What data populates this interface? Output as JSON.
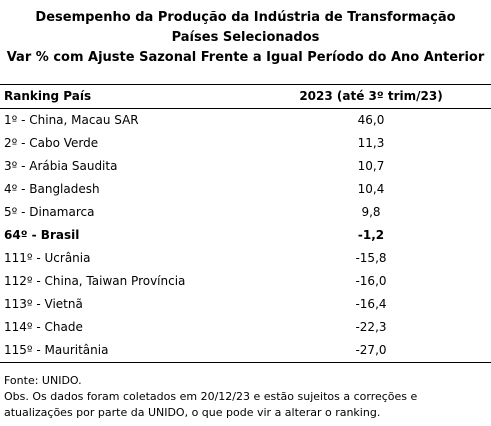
{
  "title": {
    "line1": "Desempenho da Produção da Indústria de Transformação",
    "line2": "Países Selecionados",
    "line3": "Var % com Ajuste Sazonal Frente a Igual Período do Ano Anterior"
  },
  "table": {
    "headers": {
      "country": "Ranking País",
      "value": "2023 (até 3º trim/23)"
    },
    "rows": [
      {
        "country": "1º - China, Macau SAR",
        "value": "46,0",
        "bold": false
      },
      {
        "country": "2º - Cabo Verde",
        "value": "11,3",
        "bold": false
      },
      {
        "country": "3º - Arábia Saudita",
        "value": "10,7",
        "bold": false
      },
      {
        "country": "4º - Bangladesh",
        "value": "10,4",
        "bold": false
      },
      {
        "country": "5º - Dinamarca",
        "value": "9,8",
        "bold": false
      },
      {
        "country": "64º - Brasil",
        "value": "-1,2",
        "bold": true
      },
      {
        "country": "111º - Ucrânia",
        "value": "-15,8",
        "bold": false
      },
      {
        "country": "112º - China, Taiwan Província",
        "value": "-16,0",
        "bold": false
      },
      {
        "country": "113º - Vietnã",
        "value": "-16,4",
        "bold": false
      },
      {
        "country": "114º - Chade",
        "value": "-22,3",
        "bold": false
      },
      {
        "country": "115º - Mauritânia",
        "value": "-27,0",
        "bold": false
      }
    ]
  },
  "notes": {
    "source": "Fonte: UNIDO.",
    "obs_line1": "Obs. Os dados foram coletados em 20/12/23 e estão sujeitos a correções e",
    "obs_line2": "atualizações por parte da UNIDO, o que pode vir a alterar o ranking."
  }
}
